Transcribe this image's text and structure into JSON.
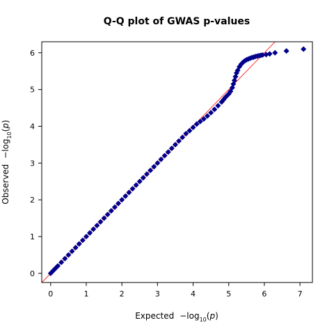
{
  "chart_data": {
    "type": "scatter",
    "title": "Q-Q plot of GWAS p-values",
    "xlabel": {
      "prefix": "Expected",
      "log": "log",
      "sub": "10",
      "arg": "p"
    },
    "ylabel": {
      "prefix": "Observed",
      "log": "log",
      "sub": "10",
      "arg": "p"
    },
    "xlim": [
      -0.25,
      7.35
    ],
    "ylim": [
      -0.25,
      6.3
    ],
    "xticks": [
      0,
      1,
      2,
      3,
      4,
      5,
      6,
      7
    ],
    "yticks": [
      0,
      1,
      2,
      3,
      4,
      5,
      6
    ],
    "grid": false,
    "colors": {
      "points": "#00008b",
      "reference_line": "#ff0000"
    },
    "reference_line": {
      "slope": 1,
      "intercept": 0
    },
    "series": [
      {
        "marker": "diamond",
        "x": [
          0.0,
          0.05,
          0.1,
          0.15,
          0.2,
          0.3,
          0.4,
          0.5,
          0.6,
          0.7,
          0.8,
          0.9,
          1.0,
          1.1,
          1.2,
          1.3,
          1.4,
          1.5,
          1.6,
          1.7,
          1.8,
          1.9,
          2.0,
          2.1,
          2.2,
          2.3,
          2.4,
          2.5,
          2.6,
          2.7,
          2.8,
          2.9,
          3.0,
          3.1,
          3.2,
          3.3,
          3.4,
          3.5,
          3.6,
          3.7,
          3.8,
          3.9,
          4.0,
          4.1,
          4.2,
          4.3,
          4.4,
          4.5,
          4.6,
          4.7,
          4.8,
          4.85,
          4.9,
          4.95,
          5.0,
          5.05,
          5.1,
          5.13,
          5.16,
          5.19,
          5.22,
          5.25,
          5.3,
          5.35,
          5.4,
          5.45,
          5.5,
          5.55,
          5.6,
          5.65,
          5.7,
          5.75,
          5.8,
          5.85,
          5.9,
          5.95,
          6.05,
          6.15,
          6.3,
          6.62,
          7.1
        ],
        "y": [
          0.0,
          0.05,
          0.1,
          0.15,
          0.2,
          0.3,
          0.4,
          0.5,
          0.6,
          0.7,
          0.8,
          0.9,
          1.0,
          1.1,
          1.2,
          1.3,
          1.4,
          1.5,
          1.6,
          1.7,
          1.8,
          1.9,
          2.0,
          2.1,
          2.2,
          2.3,
          2.4,
          2.5,
          2.6,
          2.7,
          2.8,
          2.9,
          3.0,
          3.1,
          3.2,
          3.3,
          3.4,
          3.5,
          3.6,
          3.7,
          3.8,
          3.88,
          3.97,
          4.06,
          4.13,
          4.2,
          4.28,
          4.37,
          4.46,
          4.56,
          4.66,
          4.72,
          4.78,
          4.83,
          4.88,
          4.95,
          5.05,
          5.15,
          5.25,
          5.35,
          5.45,
          5.52,
          5.62,
          5.69,
          5.74,
          5.78,
          5.81,
          5.83,
          5.85,
          5.87,
          5.88,
          5.9,
          5.91,
          5.92,
          5.93,
          5.94,
          5.95,
          5.97,
          6.0,
          6.05,
          6.1
        ]
      }
    ]
  }
}
